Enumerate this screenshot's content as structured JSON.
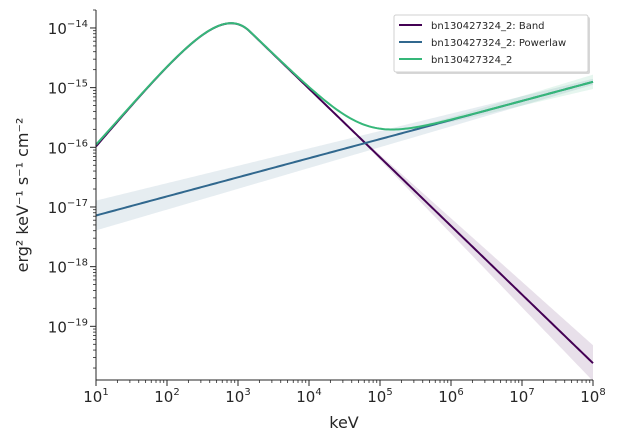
{
  "chart_data": {
    "type": "line",
    "xlabel": "keV",
    "ylabel": "erg² keV⁻¹ s⁻¹ cm⁻²",
    "x_scale": "log",
    "y_scale": "log",
    "xlim": [
      10,
      100000000
    ],
    "ylim": [
      1.26e-20,
      2e-14
    ],
    "x_ticks": [
      {
        "value": 10,
        "base": "10",
        "exp": "1"
      },
      {
        "value": 100,
        "base": "10",
        "exp": "2"
      },
      {
        "value": 1000,
        "base": "10",
        "exp": "3"
      },
      {
        "value": 10000,
        "base": "10",
        "exp": "4"
      },
      {
        "value": 100000,
        "base": "10",
        "exp": "5"
      },
      {
        "value": 1000000,
        "base": "10",
        "exp": "6"
      },
      {
        "value": 10000000,
        "base": "10",
        "exp": "7"
      },
      {
        "value": 100000000,
        "base": "10",
        "exp": "8"
      }
    ],
    "y_ticks": [
      {
        "value": 1e-14,
        "base": "10",
        "exp": "−14"
      },
      {
        "value": 1e-15,
        "base": "10",
        "exp": "−15"
      },
      {
        "value": 1e-16,
        "base": "10",
        "exp": "−16"
      },
      {
        "value": 1e-17,
        "base": "10",
        "exp": "−17"
      },
      {
        "value": 1e-18,
        "base": "10",
        "exp": "−18"
      },
      {
        "value": 1e-19,
        "base": "10",
        "exp": "−19"
      }
    ],
    "grid": false,
    "legend_position": "top-right",
    "series": [
      {
        "name": "bn130427324_2: Band",
        "color": "#440154",
        "model": "band",
        "params": {
          "amplitude": 1.2e-14,
          "epeak": 800,
          "alpha": -0.6,
          "beta": -3.15
        },
        "band_width_dex_low": 0.0,
        "band_width_dex_high": 0.3
      },
      {
        "name": "bn130427324_2: Powerlaw",
        "color": "#31688e",
        "model": "powerlaw",
        "params": {
          "y_at_10": 7.2e-18,
          "slope": 0.32
        },
        "band_width_dex_low": 0.25,
        "band_width_dex_high": 0.05
      },
      {
        "name": "bn130427324_2",
        "color": "#35b779",
        "model": "sum",
        "band_width_dex_low": 0.0,
        "band_width_dex_high": 0.12
      }
    ]
  }
}
